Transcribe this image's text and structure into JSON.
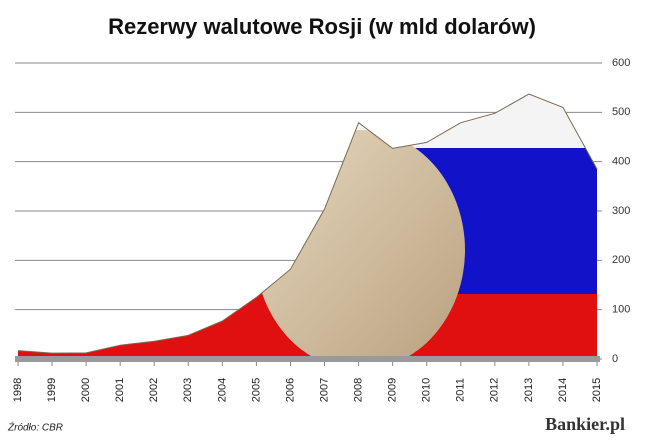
{
  "chart_data": {
    "type": "area",
    "title": "Rezerwy walutowe Rosji (w mld dolarów)",
    "x": [
      1998,
      1999,
      2000,
      2001,
      2002,
      2003,
      2004,
      2005,
      2006,
      2007,
      2008,
      2009,
      2010,
      2011,
      2012,
      2013,
      2014,
      2015
    ],
    "values": [
      17,
      12,
      12.5,
      28,
      36,
      48,
      77,
      125,
      182,
      304,
      479,
      427,
      439,
      479,
      498,
      537,
      510,
      385
    ],
    "xlim": [
      1998,
      2015
    ],
    "xticks": [
      1998,
      1999,
      2000,
      2001,
      2002,
      2003,
      2004,
      2005,
      2006,
      2007,
      2008,
      2009,
      2010,
      2011,
      2012,
      2013,
      2014,
      2015
    ],
    "ylim": [
      0,
      600
    ],
    "yticks": [
      0,
      100,
      200,
      300,
      400,
      500,
      600
    ],
    "grid": true,
    "source": "Źródło: CBR",
    "brand": "Bankier.pl"
  }
}
